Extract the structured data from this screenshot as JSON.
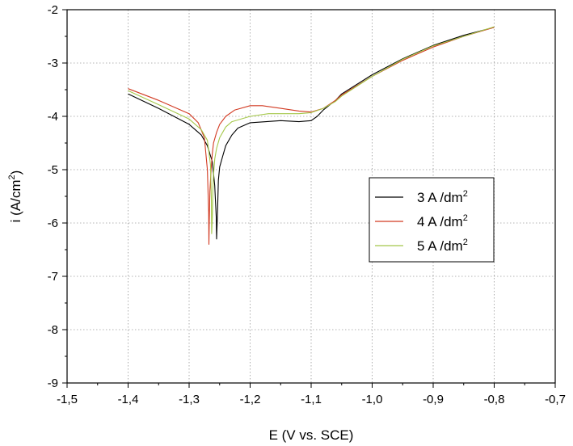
{
  "chart_data": {
    "type": "line",
    "xlabel": "E (V vs. SCE)",
    "ylabel_main": "i (A/cm",
    "ylabel_sup": "2",
    "ylabel_end": ")",
    "xlim": [
      -1.5,
      -0.7
    ],
    "ylim": [
      -9,
      -2
    ],
    "x_ticks": [
      -1.5,
      -1.4,
      -1.3,
      -1.2,
      -1.1,
      -1.0,
      -0.9,
      -0.8,
      -0.7
    ],
    "x_tick_labels": [
      "-1,5",
      "-1,4",
      "-1,3",
      "-1,2",
      "-1,1",
      "-1,0",
      "-0,9",
      "-0,8",
      "-0,7"
    ],
    "y_ticks": [
      -9,
      -8,
      -7,
      -6,
      -5,
      -4,
      -3,
      -2
    ],
    "y_tick_labels": [
      "-9",
      "-8",
      "-7",
      "-6",
      "-5",
      "-4",
      "-3",
      "-2"
    ],
    "grid": true,
    "legend_position": "right-middle",
    "series": [
      {
        "name": "3 A /dm",
        "name_sup": "2",
        "color": "#000000",
        "x": [
          -1.4,
          -1.35,
          -1.3,
          -1.28,
          -1.27,
          -1.262,
          -1.258,
          -1.2555,
          -1.255,
          -1.254,
          -1.253,
          -1.252,
          -1.25,
          -1.245,
          -1.24,
          -1.23,
          -1.22,
          -1.2,
          -1.15,
          -1.12,
          -1.1,
          -1.09,
          -1.08,
          -1.06,
          -1.05,
          -1.0,
          -0.95,
          -0.9,
          -0.85,
          -0.8
        ],
        "y": [
          -3.58,
          -3.85,
          -4.15,
          -4.35,
          -4.55,
          -4.85,
          -5.3,
          -5.9,
          -6.3,
          -6.0,
          -5.6,
          -5.2,
          -4.95,
          -4.75,
          -4.55,
          -4.35,
          -4.22,
          -4.12,
          -4.08,
          -4.1,
          -4.08,
          -4.0,
          -3.88,
          -3.7,
          -3.58,
          -3.22,
          -2.92,
          -2.67,
          -2.48,
          -2.33
        ]
      },
      {
        "name": "4 A /dm",
        "name_sup": "2",
        "color": "#d23a22",
        "x": [
          -1.4,
          -1.35,
          -1.3,
          -1.285,
          -1.275,
          -1.27,
          -1.268,
          -1.2675,
          -1.267,
          -1.266,
          -1.264,
          -1.262,
          -1.26,
          -1.255,
          -1.25,
          -1.24,
          -1.225,
          -1.2,
          -1.18,
          -1.15,
          -1.12,
          -1.1,
          -1.08,
          -1.06,
          -1.05,
          -1.0,
          -0.95,
          -0.9,
          -0.85,
          -0.8
        ],
        "y": [
          -3.48,
          -3.7,
          -3.95,
          -4.12,
          -4.4,
          -5.0,
          -5.8,
          -6.4,
          -6.0,
          -5.4,
          -5.0,
          -4.7,
          -4.5,
          -4.3,
          -4.15,
          -4.0,
          -3.88,
          -3.8,
          -3.8,
          -3.85,
          -3.9,
          -3.92,
          -3.85,
          -3.7,
          -3.6,
          -3.25,
          -2.95,
          -2.7,
          -2.5,
          -2.33
        ]
      },
      {
        "name": "5 A /dm",
        "name_sup": "2",
        "color": "#a5c84a",
        "x": [
          -1.4,
          -1.35,
          -1.3,
          -1.28,
          -1.27,
          -1.265,
          -1.2635,
          -1.263,
          -1.262,
          -1.261,
          -1.26,
          -1.258,
          -1.255,
          -1.25,
          -1.24,
          -1.23,
          -1.2,
          -1.17,
          -1.15,
          -1.12,
          -1.1,
          -1.08,
          -1.06,
          -1.05,
          -1.0,
          -0.95,
          -0.9,
          -0.85,
          -0.8
        ],
        "y": [
          -3.52,
          -3.78,
          -4.05,
          -4.25,
          -4.45,
          -4.9,
          -5.6,
          -6.2,
          -5.9,
          -5.4,
          -5.1,
          -4.8,
          -4.6,
          -4.4,
          -4.2,
          -4.1,
          -4.0,
          -3.95,
          -3.95,
          -3.95,
          -3.93,
          -3.85,
          -3.72,
          -3.62,
          -3.25,
          -2.93,
          -2.68,
          -2.5,
          -2.32
        ]
      }
    ]
  }
}
